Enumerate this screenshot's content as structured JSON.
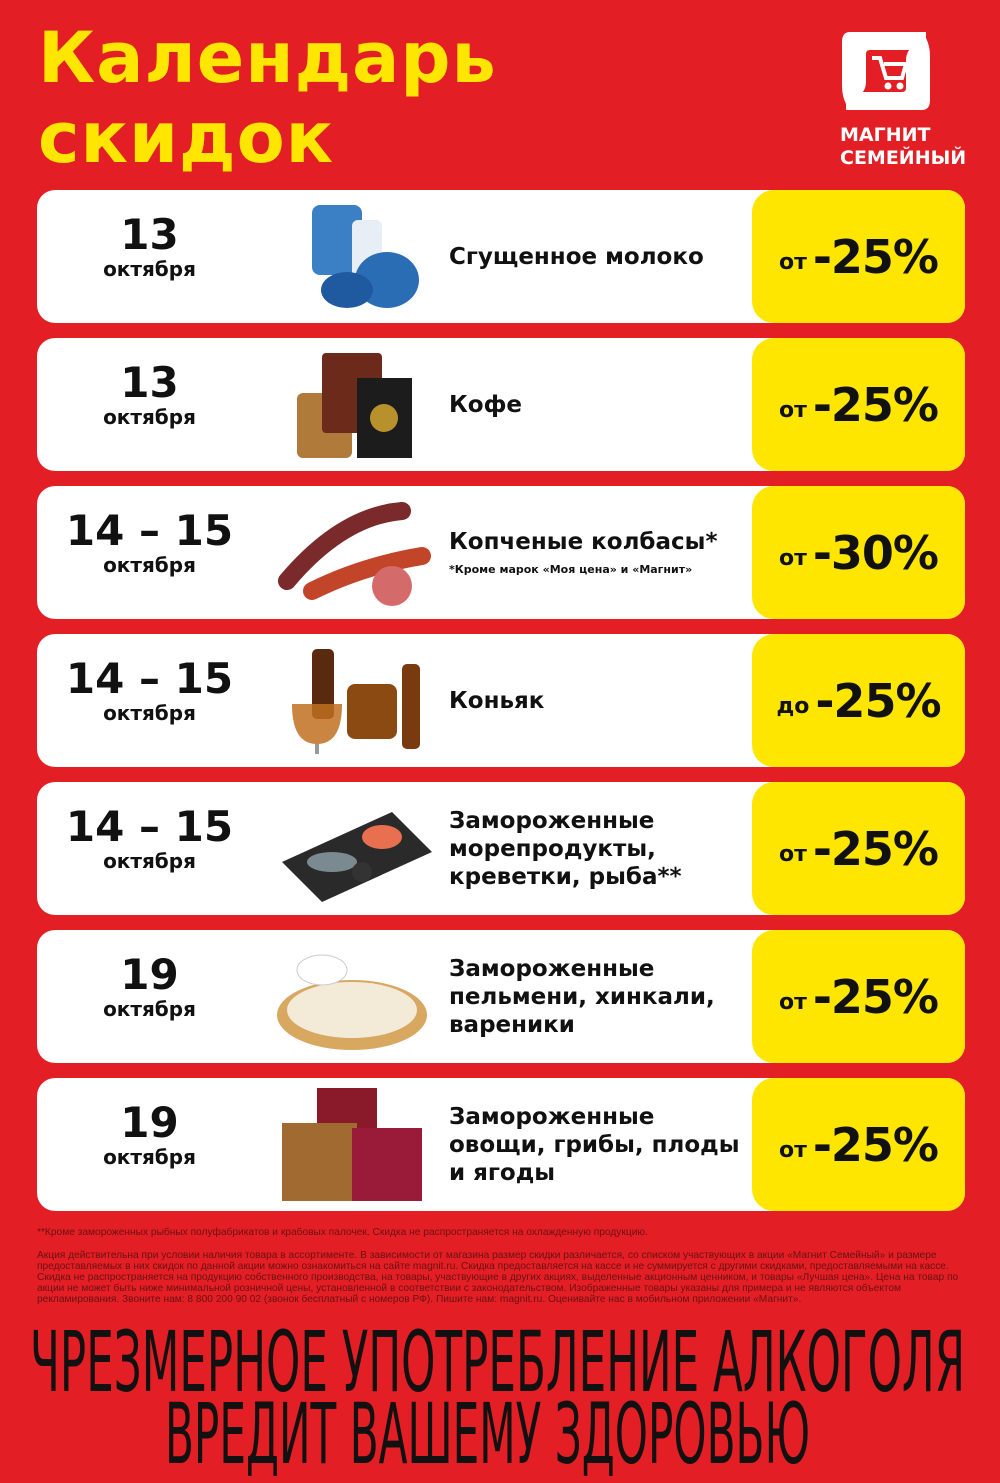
{
  "title": {
    "line1": "Календарь",
    "line2": "скидок"
  },
  "brand": {
    "line1": "МАГНИТ",
    "line2": "СЕМЕЙНЫЙ",
    "icon": "cart-logo-icon"
  },
  "colors": {
    "background": "#e31e24",
    "accent": "#ffe600",
    "card": "#ffffff"
  },
  "items": [
    {
      "day": "13",
      "month": "октября",
      "name": "Сгущенное молоко",
      "note": "",
      "prefix": "от",
      "discount": "-25%",
      "image": "condensed-milk"
    },
    {
      "day": "13",
      "month": "октября",
      "name": "Кофе",
      "note": "",
      "prefix": "от",
      "discount": "-25%",
      "image": "coffee"
    },
    {
      "day": "14 – 15",
      "month": "октября",
      "name": "Копченые колбасы*",
      "note": "*Кроме марок «Моя цена» и «Магнит»",
      "prefix": "от",
      "discount": "-30%",
      "image": "sausages"
    },
    {
      "day": "14 – 15",
      "month": "октября",
      "name": "Коньяк",
      "note": "",
      "prefix": "до",
      "discount": "-25%",
      "image": "cognac"
    },
    {
      "day": "14 – 15",
      "month": "октября",
      "name": "Замороженные морепродукты, креветки, рыба**",
      "note": "",
      "prefix": "от",
      "discount": "-25%",
      "image": "seafood"
    },
    {
      "day": "19",
      "month": "октября",
      "name": "Замороженные пельмени, хинкали, вареники",
      "note": "",
      "prefix": "от",
      "discount": "-25%",
      "image": "dumplings"
    },
    {
      "day": "19",
      "month": "октября",
      "name": "Замороженные овощи, грибы, плоды и ягоды",
      "note": "",
      "prefix": "от",
      "discount": "-25%",
      "image": "frozen-vegetables"
    }
  ],
  "footnote": "**Кроме замороженных рыбных полуфабрикатов и крабовых палочек. Скидка не распространяется на охлажденную продукцию.",
  "legal": "Акция действительна при условии наличия товара в ассортименте. В зависимости от магазина размер скидки различается, со списком участвующих в акции «Магнит Семейный» и размере предоставляемых в них скидок по данной акции можно ознакомиться на сайте magnit.ru. Скидка предоставляется на кассе и не суммируется с другими скидками, предоставляемыми на кассе. Скидка не распространяется на продукцию собственного производства, на товары, участвующие в других акциях, выделенные акционным ценником, и товары «Лучшая цена». Цена на товар по акции не может быть ниже минимальной розничной цены, установленной в соответствии с законодательством. Изображенные товары указаны для примера и не являются объектом рекламирования. Звоните нам: 8 800 200 90 02 (звонок бесплатный с номеров РФ). Пишите нам: magnit.ru. Оценивайте нас в мобильном приложении «Магнит».",
  "warning": {
    "line1": "ЧРЕЗМЕРНОЕ УПОТРЕБЛЕНИЕ АЛКОГОЛЯ",
    "line2": "ВРЕДИТ ВАШЕМУ ЗДОРОВЬЮ"
  }
}
